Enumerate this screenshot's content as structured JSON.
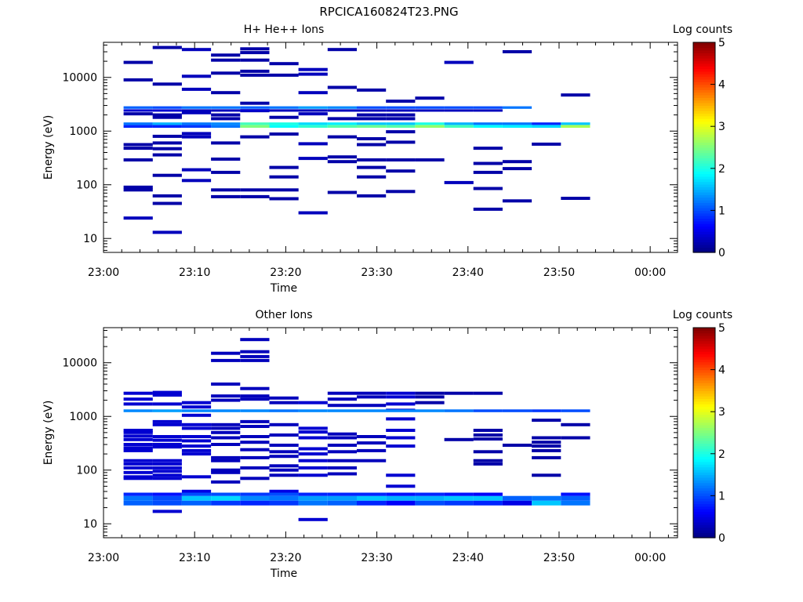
{
  "figure_title": "RPCICA160824T23.PNG",
  "colors": {
    "axis": "#000000",
    "background": "#ffffff",
    "colormap": [
      "#00007f",
      "#0000ff",
      "#007fff",
      "#00ffff",
      "#7fff7f",
      "#ffff00",
      "#ff7f00",
      "#ff0000",
      "#7f0000"
    ]
  },
  "chart_data": [
    {
      "type": "heatmap",
      "title": "H+ He++ Ions",
      "xlabel": "Time",
      "ylabel": "Energy (eV)",
      "y_scale": "log",
      "ylim": [
        5.5,
        45000
      ],
      "xlim": [
        "23:00",
        "00:03"
      ],
      "x_ticks": [
        "23:00",
        "23:10",
        "23:20",
        "23:30",
        "23:40",
        "23:50",
        "00:00"
      ],
      "y_ticks": [
        10,
        100,
        1000,
        10000
      ],
      "y_tick_labels": [
        "10",
        "100",
        "1000",
        "10000"
      ],
      "colorbar": {
        "label": "Log counts",
        "range": [
          0,
          5
        ],
        "ticks": [
          "0",
          "1",
          "2",
          "3",
          "4",
          "5"
        ]
      },
      "time_bins_start_min": [
        2.2,
        5.4,
        8.6,
        11.8,
        15.0,
        18.2,
        21.4,
        24.6,
        27.8,
        31.0,
        34.2,
        37.4,
        40.6,
        43.8,
        47.0,
        50.2
      ],
      "time_bin_width_min": 3.2,
      "energy_bands": [
        {
          "e_min": 1150,
          "e_max": 1300,
          "log_counts": [
            0.8,
            0.8,
            0.9,
            1.2,
            2.5,
            1.9,
            2.1,
            2.3,
            2.4,
            2.3,
            2.6,
            2.2,
            1.9,
            1.8,
            1.7,
            2.7
          ]
        },
        {
          "e_min": 1300,
          "e_max": 1450,
          "log_counts": [
            1.2,
            1.5,
            1.2,
            1.3,
            2.2,
            2.0,
            1.7,
            1.8,
            1.6,
            1.6,
            2.0,
            1.5,
            1.2,
            1.2,
            0.8,
            1.6
          ]
        },
        {
          "e_min": 2600,
          "e_max": 2900,
          "log_counts": [
            1.1,
            1.0,
            1.2,
            1.2,
            1.1,
            1.2,
            1.4,
            1.3,
            1.0,
            1.0,
            1.0,
            1.0,
            1.0,
            1.2,
            null,
            null
          ]
        },
        {
          "e_min": 2300,
          "e_max": 2550,
          "log_counts": [
            0.4,
            0.4,
            0.3,
            0.3,
            0.4,
            0.3,
            0.3,
            0.3,
            0.3,
            0.3,
            0.3,
            0.3,
            0.3,
            null,
            null,
            null
          ]
        }
      ],
      "scattered_counts": [
        {
          "bin": 0,
          "energies": [
            19000,
            9000,
            2100,
            560,
            480,
            290,
            90,
            80
          ],
          "log_counts": 0.2
        },
        {
          "bin": 0,
          "energies": [
            24
          ],
          "log_counts": 0.3
        },
        {
          "bin": 1,
          "energies": [
            36000,
            7500,
            2000,
            1800,
            800,
            600,
            470,
            360,
            150,
            62,
            45
          ],
          "log_counts": 0.2
        },
        {
          "bin": 1,
          "energies": [
            13
          ],
          "log_counts": 0.3
        },
        {
          "bin": 2,
          "energies": [
            33000,
            10500,
            6000,
            2200,
            900,
            780,
            190,
            120
          ],
          "log_counts": 0.3
        },
        {
          "bin": 3,
          "energies": [
            26000,
            21000,
            12000,
            5200,
            2000,
            1700,
            600,
            300,
            170,
            80,
            60
          ],
          "log_counts": 0.2
        },
        {
          "bin": 4,
          "energies": [
            34000,
            29000,
            21000,
            13000,
            11000,
            3300,
            2400,
            780,
            80,
            60
          ],
          "log_counts": 0.2
        },
        {
          "bin": 5,
          "energies": [
            18000,
            11000,
            1800,
            880,
            210,
            140,
            80,
            55
          ],
          "log_counts": 0.2
        },
        {
          "bin": 6,
          "energies": [
            14000,
            11500,
            5200,
            2100,
            580,
            310,
            30
          ],
          "log_counts": 0.3
        },
        {
          "bin": 7,
          "energies": [
            33000,
            6500,
            1700,
            780,
            330,
            270,
            72
          ],
          "log_counts": 0.2
        },
        {
          "bin": 8,
          "energies": [
            5800,
            2000,
            1700,
            720,
            560,
            290,
            210,
            140,
            62
          ],
          "log_counts": 0.2
        },
        {
          "bin": 9,
          "energies": [
            3600,
            2000,
            1700,
            970,
            620,
            290,
            180,
            75
          ],
          "log_counts": 0.2
        },
        {
          "bin": 10,
          "energies": [
            4100,
            290
          ],
          "log_counts": 0.2
        },
        {
          "bin": 11,
          "energies": [
            19000,
            110
          ],
          "log_counts": 0.3
        },
        {
          "bin": 12,
          "energies": [
            480,
            250,
            170,
            85,
            35
          ],
          "log_counts": 0.2
        },
        {
          "bin": 13,
          "energies": [
            30000,
            270,
            200,
            50
          ],
          "log_counts": 0.2
        },
        {
          "bin": 14,
          "energies": [
            570
          ],
          "log_counts": 0.2
        },
        {
          "bin": 15,
          "energies": [
            4700,
            56
          ],
          "log_counts": 0.2
        }
      ]
    },
    {
      "type": "heatmap",
      "title": "Other Ions",
      "xlabel": "Time",
      "ylabel": "Energy (eV)",
      "y_scale": "log",
      "ylim": [
        5.5,
        45000
      ],
      "xlim": [
        "23:00",
        "00:03"
      ],
      "x_ticks": [
        "23:00",
        "23:10",
        "23:20",
        "23:30",
        "23:40",
        "23:50",
        "00:00"
      ],
      "y_ticks": [
        10,
        100,
        1000,
        10000
      ],
      "y_tick_labels": [
        "10",
        "100",
        "1000",
        "10000"
      ],
      "colorbar": {
        "label": "Log counts",
        "range": [
          0,
          5
        ],
        "ticks": [
          "0",
          "1",
          "2",
          "3",
          "4",
          "5"
        ]
      },
      "time_bins_start_min": [
        2.2,
        5.4,
        8.6,
        11.8,
        15.0,
        18.2,
        21.4,
        24.6,
        27.8,
        31.0,
        34.2,
        37.4,
        40.6,
        43.8,
        47.0,
        50.2
      ],
      "time_bin_width_min": 3.2,
      "energy_bands": [
        {
          "e_min": 1200,
          "e_max": 1350,
          "log_counts": [
            1.3,
            1.4,
            1.3,
            1.3,
            1.3,
            1.2,
            1.3,
            1.3,
            1.3,
            1.3,
            1.3,
            1.2,
            1.0,
            1.0,
            0.9,
            1.0
          ]
        },
        {
          "e_min": 22,
          "e_max": 27,
          "log_counts": [
            1.1,
            1.0,
            1.1,
            0.9,
            0.8,
            0.9,
            1.2,
            1.1,
            0.8,
            0.6,
            1.0,
            0.9,
            0.8,
            0.5,
            1.6,
            1.2
          ]
        },
        {
          "e_min": 27,
          "e_max": 33,
          "log_counts": [
            1.2,
            1.0,
            1.6,
            1.7,
            1.3,
            1.2,
            1.4,
            1.4,
            1.6,
            1.5,
            1.5,
            1.6,
            1.6,
            1.1,
            1.2,
            1.1
          ]
        },
        {
          "e_min": 33,
          "e_max": 38,
          "log_counts": [
            0.8,
            0.7,
            1.0,
            1.0,
            0.9,
            1.0,
            0.8,
            0.8,
            0.8,
            0.7,
            0.8,
            0.7,
            0.6,
            null,
            null,
            0.7
          ]
        },
        {
          "e_min": 38,
          "e_max": 43,
          "log_counts": [
            null,
            null,
            0.5,
            null,
            null,
            0.5,
            null,
            null,
            null,
            null,
            null,
            null,
            null,
            null,
            null,
            null
          ]
        }
      ],
      "scattered_counts": [
        {
          "bin": 0,
          "energies": [
            2700,
            2100,
            1700,
            550,
            500,
            430,
            370,
            300,
            260,
            230,
            150,
            130,
            110,
            90,
            75,
            70
          ],
          "log_counts": 0.4
        },
        {
          "bin": 1,
          "energies": [
            2800,
            2500,
            1700,
            800,
            700,
            420,
            360,
            300,
            270,
            150,
            130,
            110,
            95,
            80,
            70,
            17
          ],
          "log_counts": 0.4
        },
        {
          "bin": 2,
          "energies": [
            1800,
            1500,
            1050,
            700,
            600,
            420,
            350,
            280,
            230,
            200,
            75
          ],
          "log_counts": 0.4
        },
        {
          "bin": 3,
          "energies": [
            15000,
            11000,
            4000,
            2400,
            2000,
            700,
            600,
            500,
            400,
            300,
            170,
            150,
            100,
            90,
            60
          ],
          "log_counts": 0.3
        },
        {
          "bin": 4,
          "energies": [
            27000,
            16000,
            13000,
            11000,
            3300,
            2400,
            2100,
            800,
            650,
            420,
            330,
            240,
            170,
            110,
            70
          ],
          "log_counts": 0.3
        },
        {
          "bin": 5,
          "energies": [
            2200,
            1800,
            700,
            450,
            290,
            220,
            180,
            120,
            100,
            80
          ],
          "log_counts": 0.3
        },
        {
          "bin": 6,
          "energies": [
            1800,
            600,
            510,
            400,
            250,
            200,
            150,
            110,
            80,
            12
          ],
          "log_counts": 0.4
        },
        {
          "bin": 7,
          "energies": [
            2700,
            2100,
            1600,
            470,
            400,
            290,
            220,
            150,
            110,
            85
          ],
          "log_counts": 0.3
        },
        {
          "bin": 8,
          "energies": [
            2700,
            2300,
            1600,
            420,
            320,
            230,
            150
          ],
          "log_counts": 0.3
        },
        {
          "bin": 9,
          "energies": [
            2700,
            2300,
            1700,
            1300,
            900,
            550,
            400,
            280,
            80,
            50
          ],
          "log_counts": 0.4
        },
        {
          "bin": 10,
          "energies": [
            2700,
            2300,
            1800
          ],
          "log_counts": 0.2
        },
        {
          "bin": 11,
          "energies": [
            2700,
            370
          ],
          "log_counts": 0.2
        },
        {
          "bin": 12,
          "energies": [
            2700,
            550,
            450,
            380,
            220,
            150,
            130
          ],
          "log_counts": 0.2
        },
        {
          "bin": 13,
          "energies": [
            290
          ],
          "log_counts": 0.2
        },
        {
          "bin": 14,
          "energies": [
            850,
            400,
            330,
            280,
            230,
            170,
            80
          ],
          "log_counts": 0.2
        },
        {
          "bin": 15,
          "energies": [
            700,
            400
          ],
          "log_counts": 0.2
        }
      ]
    }
  ]
}
